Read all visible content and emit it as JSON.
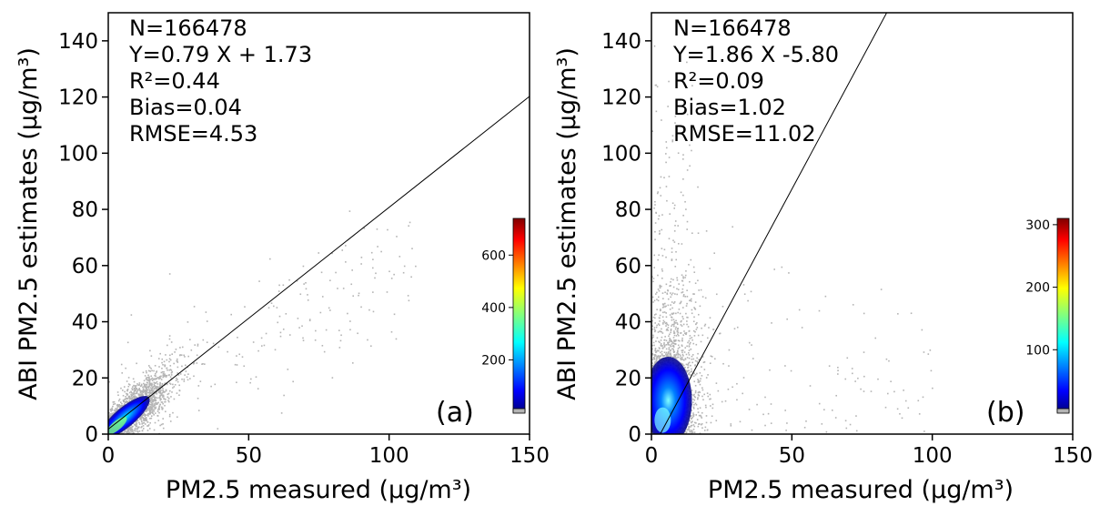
{
  "colors": {
    "background_points": "#b4b4b4",
    "density_colormap": [
      "#00007f",
      "#0000ff",
      "#0080ff",
      "#00ffff",
      "#80ff80",
      "#ffff00",
      "#ff8000",
      "#ff0000",
      "#7f0000"
    ],
    "fit_line": "#000000"
  },
  "chart_data": [
    {
      "type": "scatter",
      "panel_tag": "(a)",
      "xlabel": "PM2.5 measured (μg/m³)",
      "ylabel": "ABI PM2.5 estimates (μg/m³)",
      "xlim": [
        0,
        150
      ],
      "ylim": [
        0,
        150
      ],
      "xticks": [
        0,
        50,
        100,
        150
      ],
      "yticks": [
        0,
        20,
        40,
        60,
        80,
        100,
        120,
        140
      ],
      "grid": false,
      "stats": {
        "n": "N=166478",
        "equation": "Y=0.79 X + 1.73",
        "r2": "R²=0.44",
        "bias": "Bias=0.04",
        "rmse": "RMSE=4.53"
      },
      "fit_line": {
        "slope": 0.79,
        "intercept": 1.73
      },
      "colorbar": {
        "range": [
          0,
          740
        ],
        "ticks": [
          200,
          400,
          600
        ]
      }
    },
    {
      "type": "scatter",
      "panel_tag": "(b)",
      "xlabel": "PM2.5 measured (μg/m³)",
      "ylabel": "ABI PM2.5 estimates (μg/m³)",
      "xlim": [
        0,
        150
      ],
      "ylim": [
        0,
        150
      ],
      "xticks": [
        0,
        50,
        100,
        150
      ],
      "yticks": [
        0,
        20,
        40,
        60,
        80,
        100,
        120,
        140
      ],
      "grid": false,
      "stats": {
        "n": "N=166478",
        "equation": "Y=1.86 X -5.80",
        "r2": "R²=0.09",
        "bias": "Bias=1.02",
        "rmse": "RMSE=11.02"
      },
      "fit_line": {
        "slope": 1.86,
        "intercept": -5.8
      },
      "colorbar": {
        "range": [
          0,
          310
        ],
        "ticks": [
          100,
          200,
          300
        ]
      }
    }
  ]
}
